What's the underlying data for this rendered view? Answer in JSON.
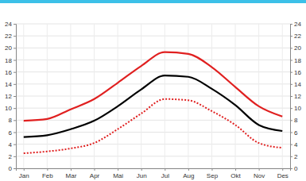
{
  "chart_data": {
    "type": "line",
    "categories": [
      "Jan",
      "Feb",
      "Mar",
      "Apr",
      "Mai",
      "Jun",
      "Jul",
      "Aug",
      "Sep",
      "Okt",
      "Nov",
      "Des"
    ],
    "series": [
      {
        "color": "#e02020",
        "line_style": "solid",
        "values": [
          7.9,
          8.2,
          9.8,
          11.5,
          14.2,
          17.0,
          19.3,
          19.0,
          16.8,
          13.5,
          10.3,
          8.6
        ]
      },
      {
        "color": "#000000",
        "line_style": "solid",
        "values": [
          5.2,
          5.5,
          6.5,
          7.9,
          10.3,
          13.1,
          15.4,
          15.2,
          13.2,
          10.5,
          7.2,
          6.2
        ]
      },
      {
        "color": "#e02020",
        "line_style": "dotted",
        "values": [
          2.5,
          2.8,
          3.3,
          4.2,
          6.5,
          9.1,
          11.5,
          11.3,
          9.5,
          7.2,
          4.2,
          3.4
        ]
      }
    ],
    "ylim": [
      0,
      24
    ],
    "yticks": [
      0,
      2,
      4,
      6,
      8,
      10,
      12,
      14,
      16,
      18,
      20,
      22,
      24
    ],
    "y2lim": [
      0,
      24
    ],
    "y2ticks": [
      0,
      2,
      4,
      6,
      8,
      10,
      12,
      14,
      16,
      18,
      20,
      22,
      24
    ],
    "grid": true
  }
}
